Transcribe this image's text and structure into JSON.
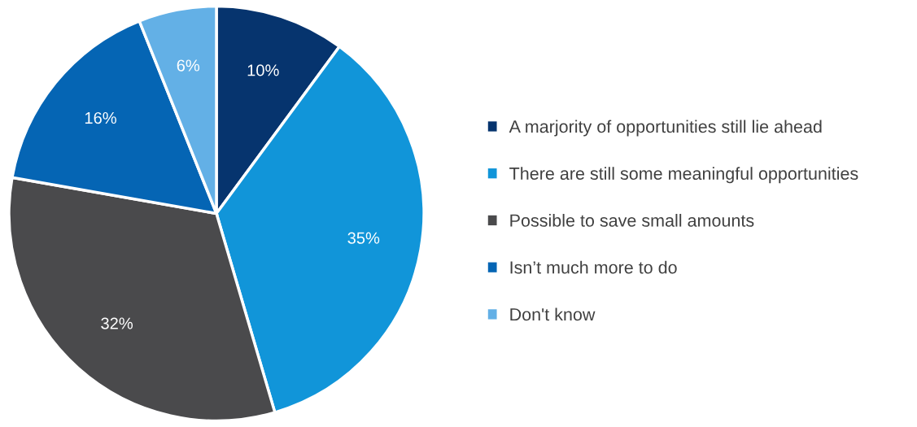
{
  "chart_data": {
    "type": "pie",
    "categories": [
      "A marjority of opportunities still lie ahead",
      "There are still some meaningful opportunities",
      "Possible to save small amounts",
      "Isn’t much more to do",
      "Don't know"
    ],
    "values": [
      10,
      35,
      32,
      16,
      6
    ],
    "value_labels": [
      "10%",
      "35%",
      "32%",
      "16%",
      "6%"
    ],
    "colors": [
      "#06346e",
      "#1195d9",
      "#4a4a4c",
      "#0565b4",
      "#63b0e6"
    ],
    "legend": "right"
  }
}
